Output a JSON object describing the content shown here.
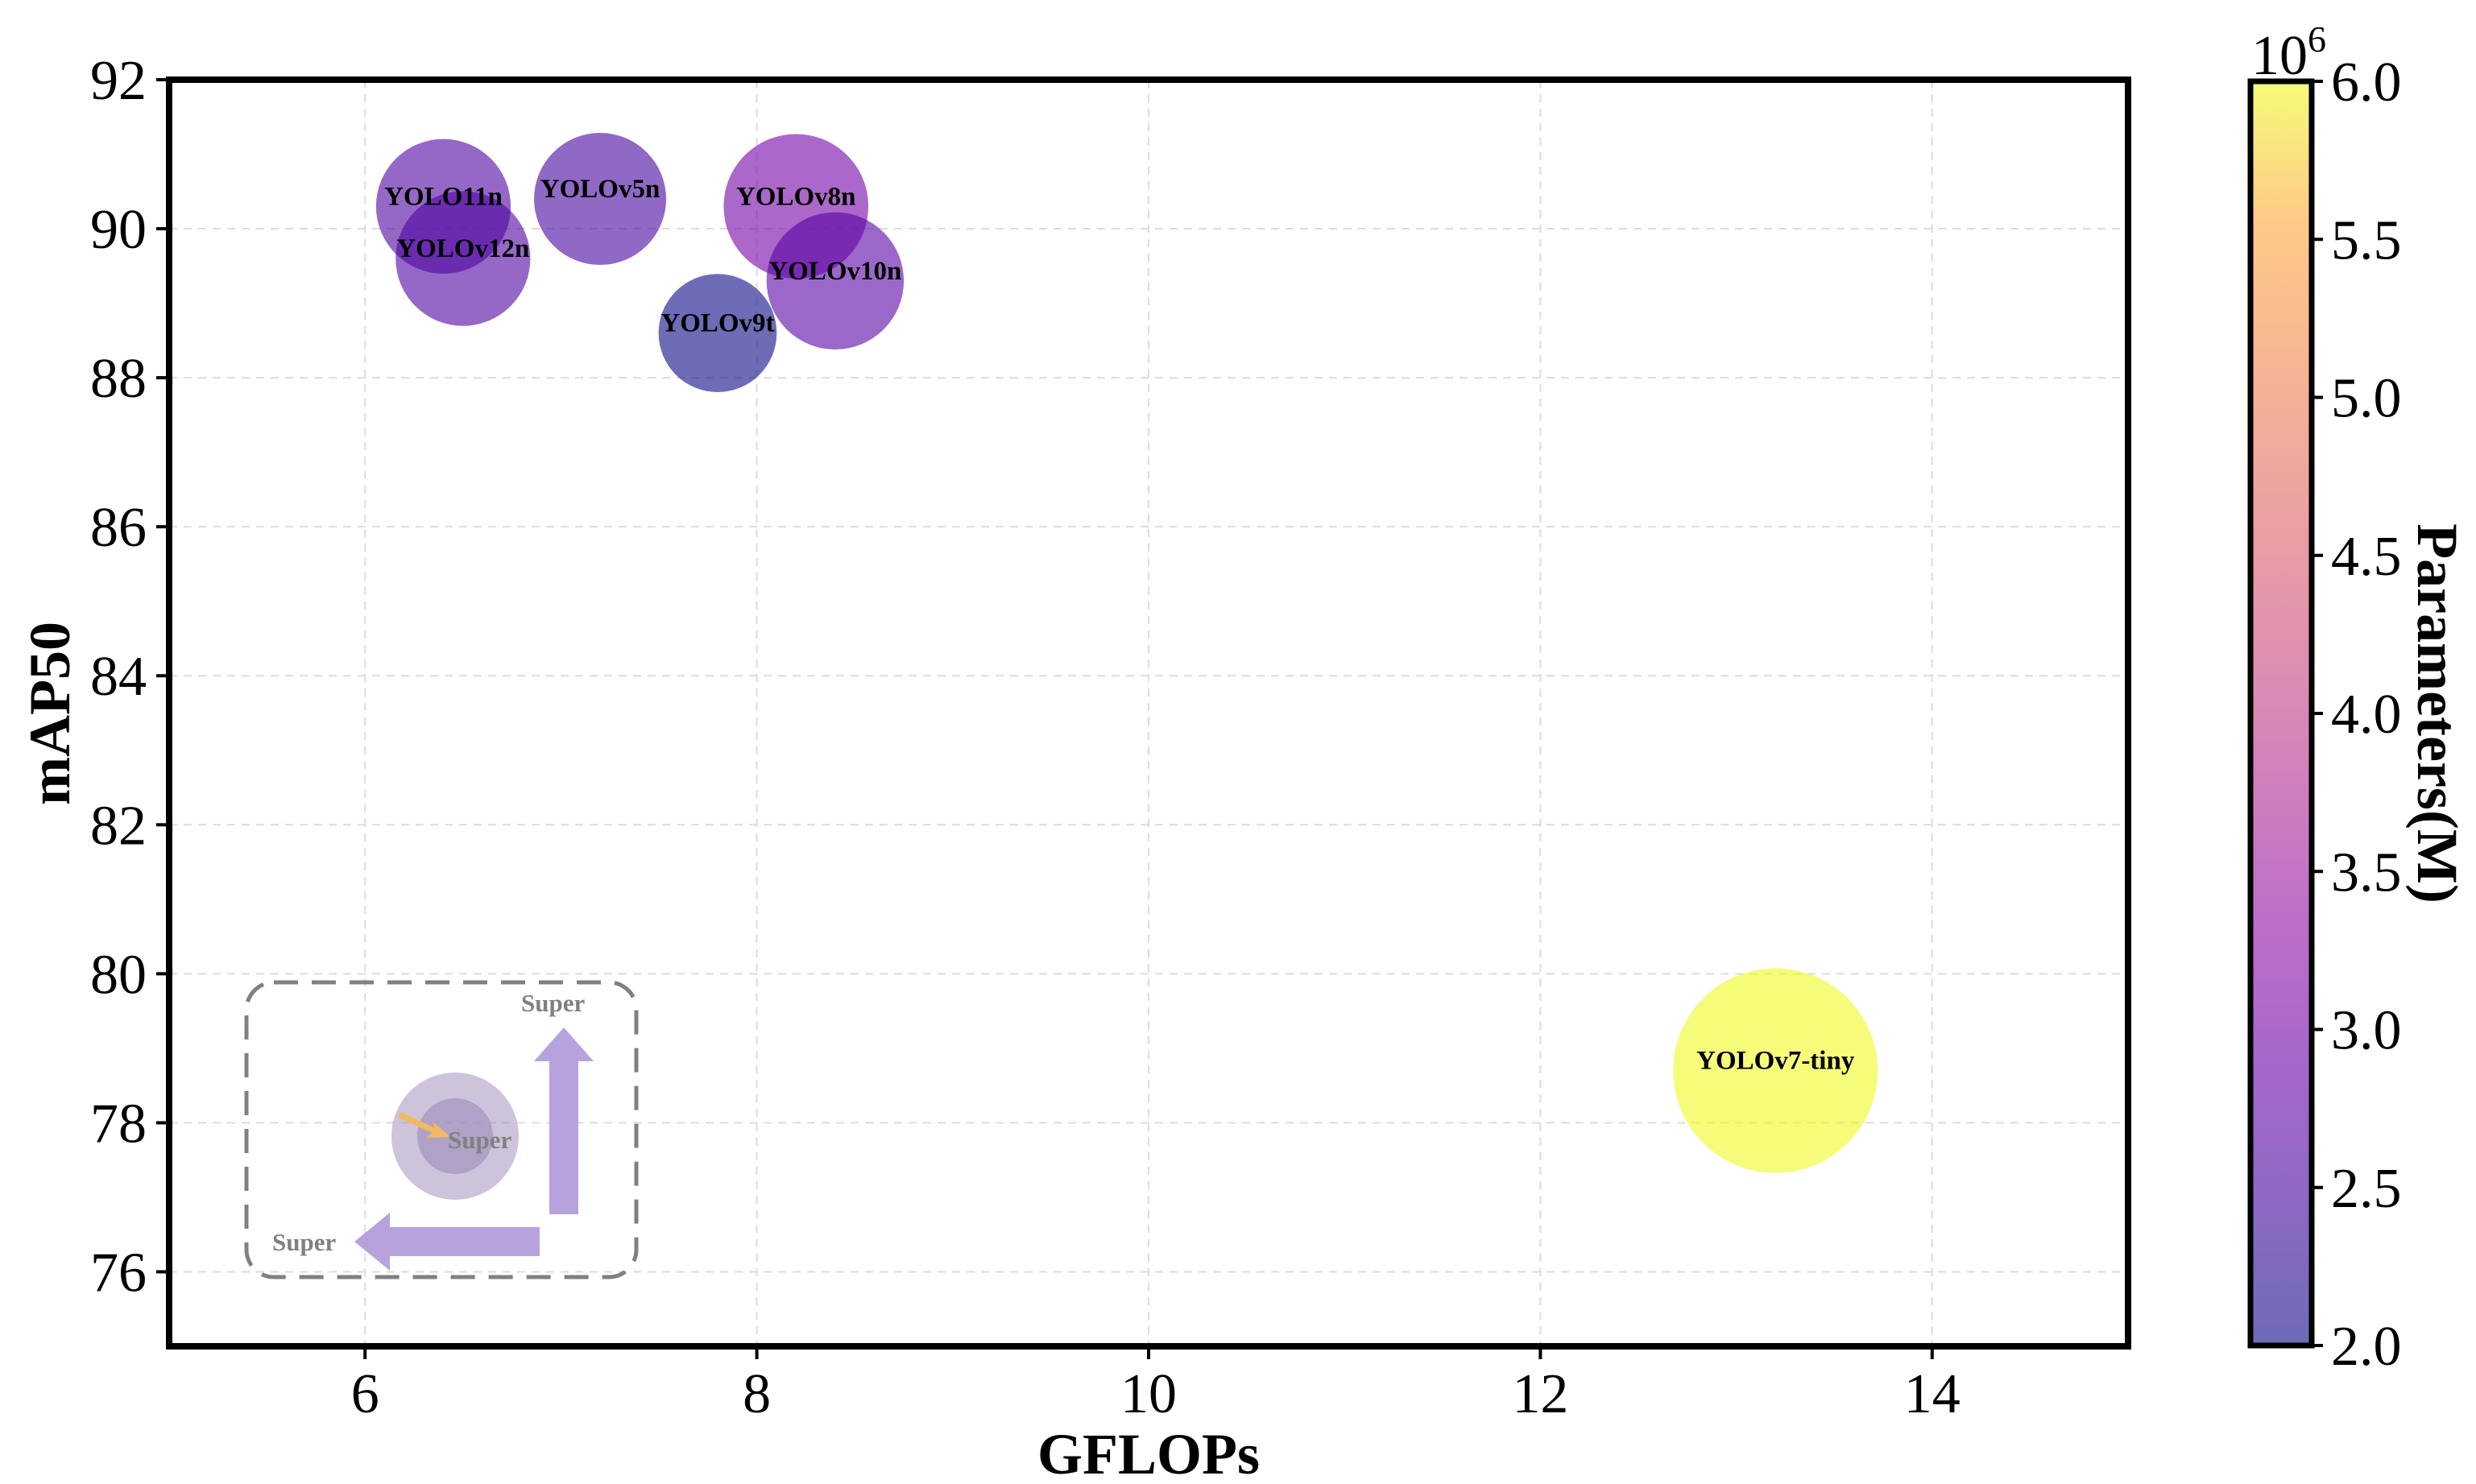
{
  "chart_data": {
    "type": "scatter",
    "title": "",
    "xlabel": "GFLOPs",
    "ylabel": "mAP50",
    "xlim": [
      5,
      15
    ],
    "ylim": [
      75,
      92
    ],
    "xticks": [
      6,
      8,
      10,
      12,
      14
    ],
    "yticks": [
      76,
      78,
      80,
      82,
      84,
      86,
      88,
      90,
      92
    ],
    "grid": true,
    "points": [
      {
        "name": "YOLO11n",
        "gflops": 6.4,
        "map50": 90.3,
        "params_m": 2.6
      },
      {
        "name": "YOLOv12n",
        "gflops": 6.5,
        "map50": 89.6,
        "params_m": 2.6
      },
      {
        "name": "YOLOv5n",
        "gflops": 7.2,
        "map50": 90.4,
        "params_m": 2.5
      },
      {
        "name": "YOLOv8n",
        "gflops": 8.2,
        "map50": 90.3,
        "params_m": 3.0
      },
      {
        "name": "YOLOv10n",
        "gflops": 8.4,
        "map50": 89.3,
        "params_m": 2.7
      },
      {
        "name": "YOLOv9t",
        "gflops": 7.8,
        "map50": 88.6,
        "params_m": 2.0
      },
      {
        "name": "YOLOv7-tiny",
        "gflops": 13.2,
        "map50": 78.7,
        "params_m": 6.0
      }
    ],
    "colorbar": {
      "label": "Parameters(M)",
      "multiplier": "10",
      "exponent": "6",
      "range": [
        2.0,
        6.0
      ],
      "ticks": [
        "2.0",
        "2.5",
        "3.0",
        "3.5",
        "4.0",
        "4.5",
        "5.0",
        "5.5",
        "6.0"
      ],
      "colormap": "plasma",
      "colormap_range": [
        "#0d0887",
        "#f0f921"
      ],
      "alpha": 0.6
    },
    "legend": {
      "placement": "bottom-left",
      "labels": [
        "Super",
        "Super",
        "Super"
      ]
    }
  },
  "colors": {
    "frame": "#000000",
    "legend_border": "#808080",
    "legend_arrow": "#b39ddb",
    "legend_small_arrow": "#f4b860",
    "label_text": "#000000"
  }
}
